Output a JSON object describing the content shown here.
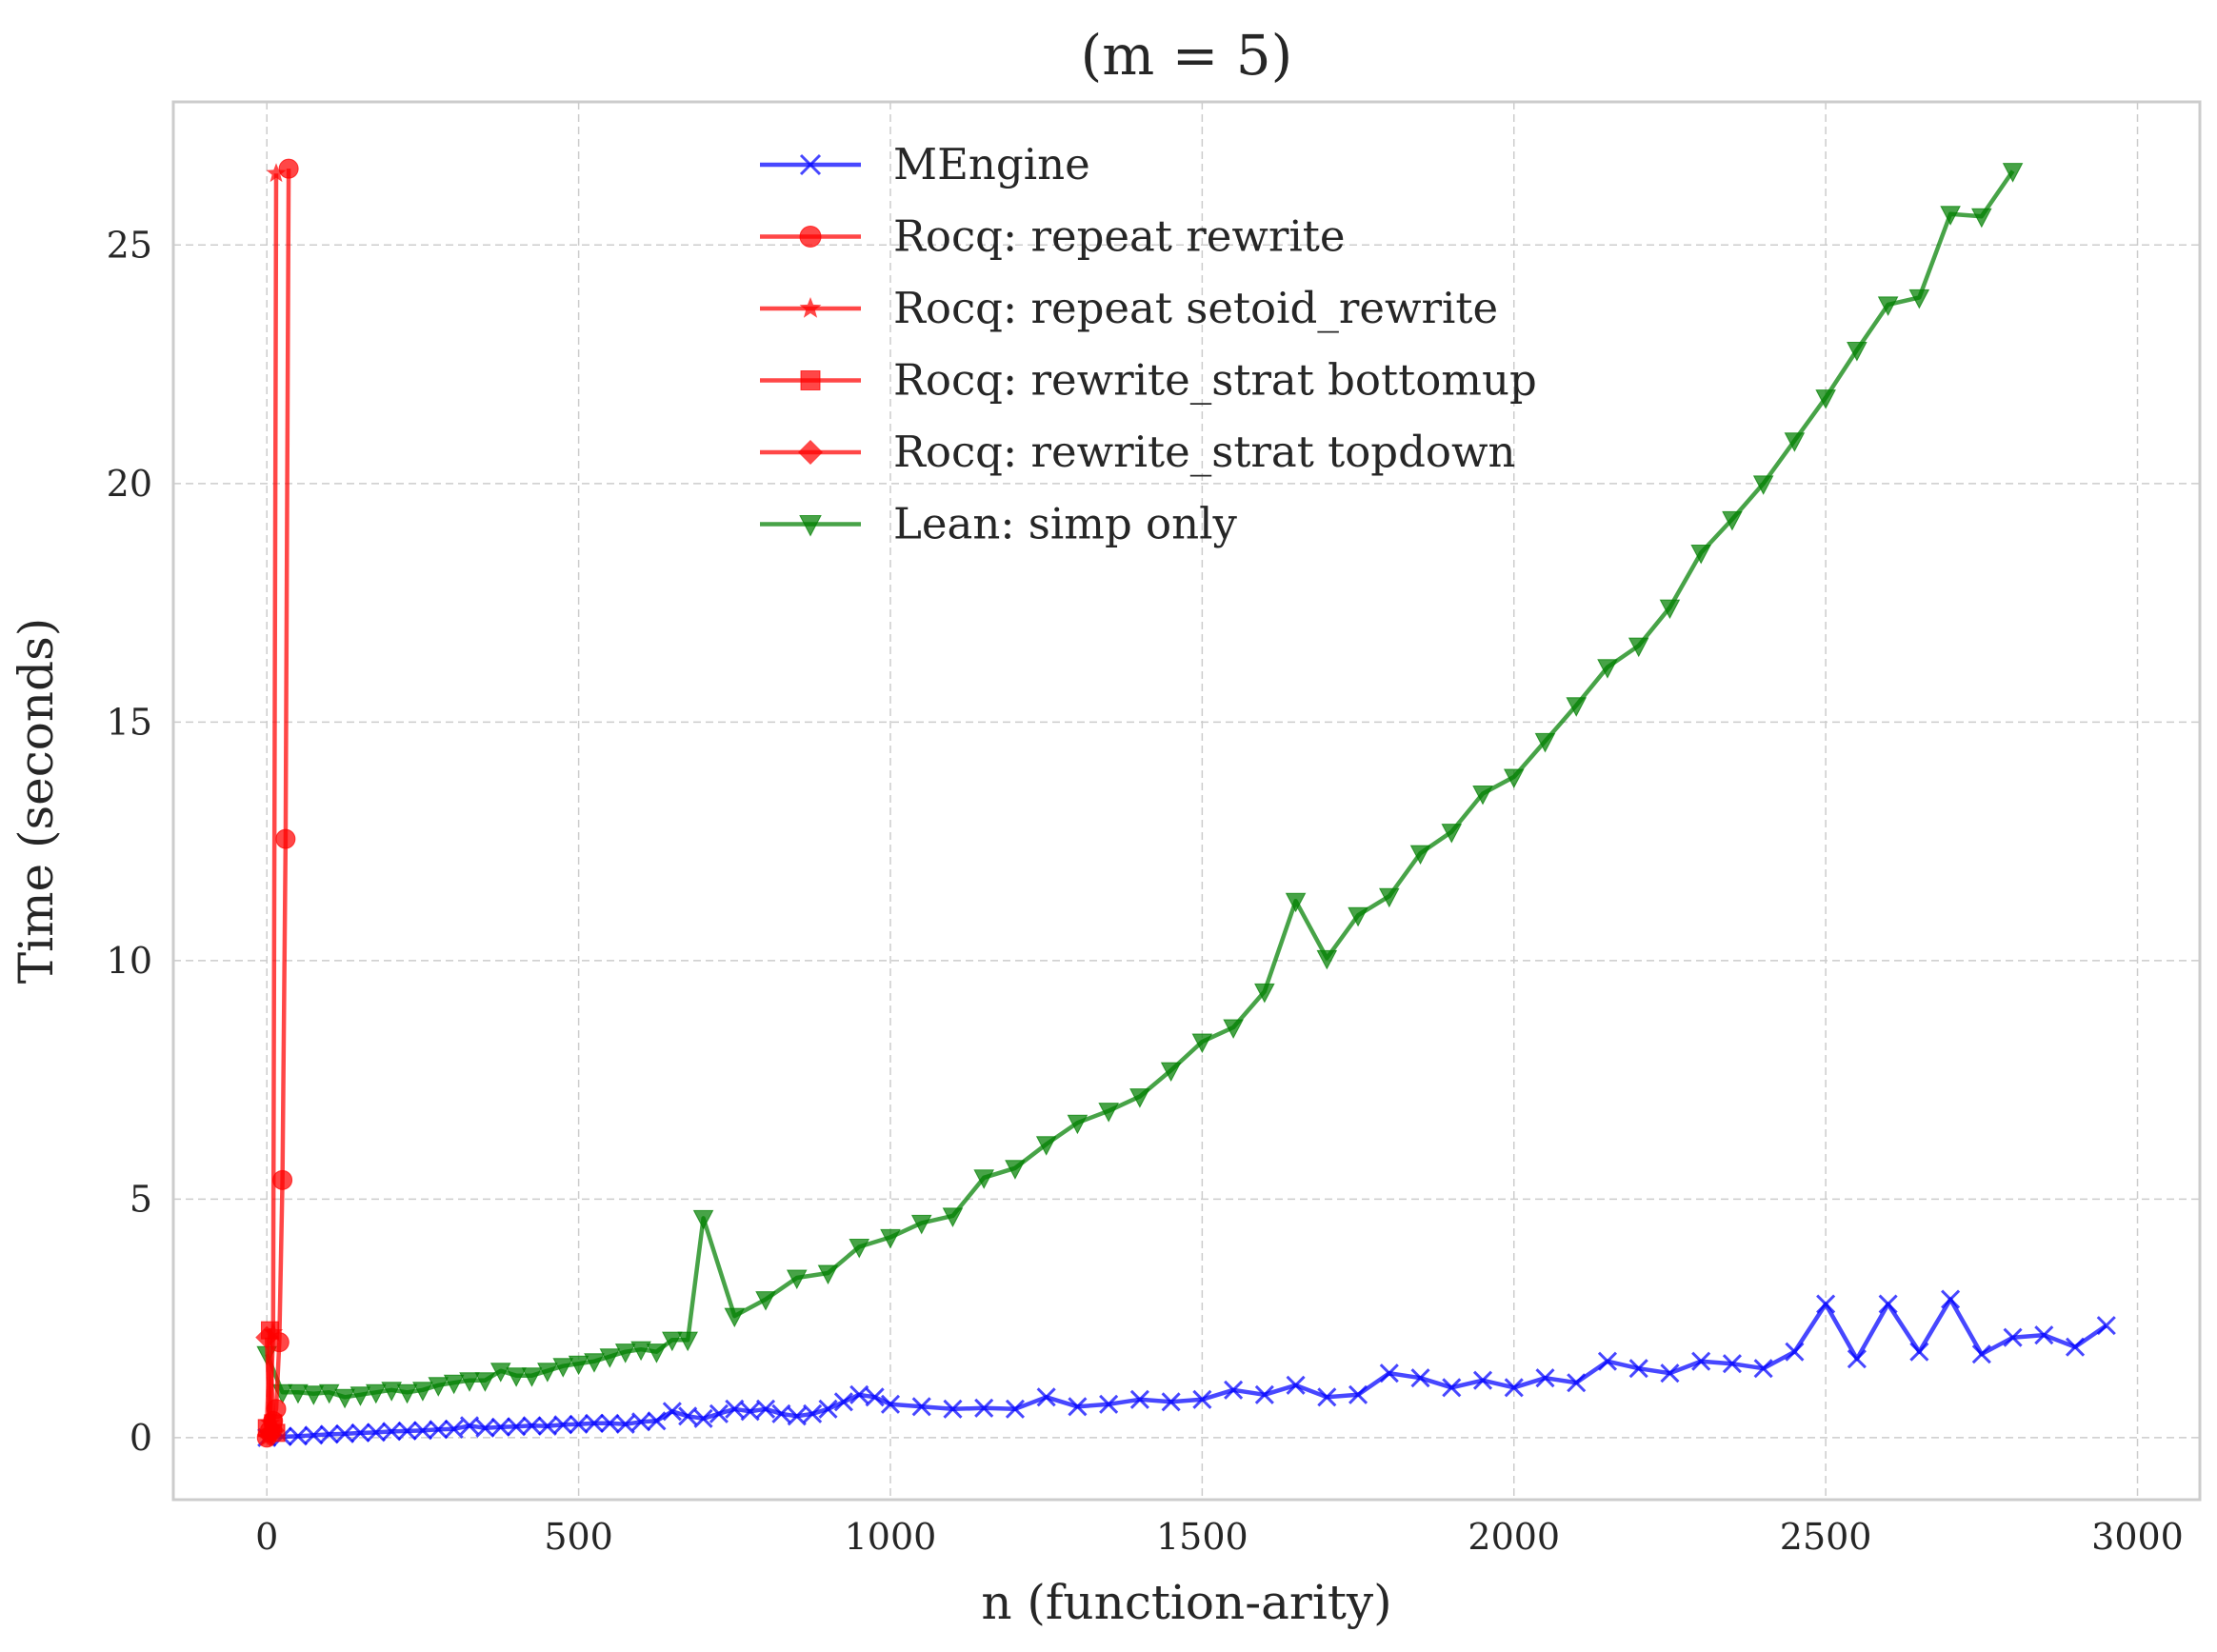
{
  "chart_data": {
    "type": "line",
    "title": "(m = 5)",
    "xlabel": "n (function-arity)",
    "ylabel": "Time (seconds)",
    "xlim": [
      -150,
      3100
    ],
    "ylim": [
      -1.3,
      28.0
    ],
    "xticks": [
      0,
      500,
      1000,
      1500,
      2000,
      2500,
      3000
    ],
    "yticks": [
      0,
      5,
      10,
      15,
      20,
      25
    ],
    "grid": true,
    "legend_position": "top-center",
    "series": [
      {
        "name": "MEngine",
        "color": "#0000ff",
        "marker": "x",
        "x": [
          0,
          25,
          50,
          75,
          100,
          125,
          150,
          175,
          200,
          225,
          250,
          275,
          300,
          325,
          350,
          375,
          400,
          425,
          450,
          475,
          500,
          525,
          550,
          575,
          600,
          625,
          650,
          675,
          700,
          725,
          750,
          775,
          800,
          825,
          850,
          875,
          900,
          925,
          950,
          975,
          1000,
          1050,
          1100,
          1150,
          1200,
          1250,
          1300,
          1350,
          1400,
          1450,
          1500,
          1550,
          1600,
          1650,
          1700,
          1750,
          1800,
          1850,
          1900,
          1950,
          2000,
          2050,
          2100,
          2150,
          2200,
          2250,
          2300,
          2350,
          2400,
          2450,
          2500,
          2550,
          2600,
          2650,
          2700,
          2750,
          2800,
          2850,
          2900,
          2950
        ],
        "y": [
          0.0,
          0.02,
          0.03,
          0.05,
          0.07,
          0.08,
          0.1,
          0.11,
          0.13,
          0.14,
          0.15,
          0.17,
          0.18,
          0.25,
          0.2,
          0.22,
          0.23,
          0.25,
          0.24,
          0.27,
          0.28,
          0.3,
          0.3,
          0.28,
          0.33,
          0.35,
          0.55,
          0.45,
          0.4,
          0.5,
          0.6,
          0.55,
          0.6,
          0.5,
          0.45,
          0.5,
          0.6,
          0.75,
          0.9,
          0.85,
          0.7,
          0.65,
          0.6,
          0.62,
          0.6,
          0.85,
          0.65,
          0.7,
          0.8,
          0.75,
          0.8,
          1.0,
          0.9,
          1.1,
          0.85,
          0.9,
          1.35,
          1.25,
          1.05,
          1.2,
          1.05,
          1.25,
          1.15,
          1.6,
          1.45,
          1.35,
          1.6,
          1.55,
          1.45,
          1.8,
          2.8,
          1.65,
          2.8,
          1.8,
          2.9,
          1.75,
          2.1,
          2.15,
          1.9,
          2.35
        ]
      },
      {
        "name": "Rocq: repeat rewrite",
        "color": "#ff0000",
        "marker": "o",
        "x": [
          0,
          5,
          10,
          15,
          20,
          25,
          30,
          35
        ],
        "y": [
          0.0,
          0.15,
          0.35,
          0.6,
          2.0,
          5.4,
          12.55,
          26.6
        ]
      },
      {
        "name": "Rocq: repeat setoid_rewrite",
        "color": "#ff0000",
        "marker": "*",
        "x": [
          0,
          5,
          10,
          15
        ],
        "y": [
          0.0,
          0.3,
          2.2,
          26.5
        ]
      },
      {
        "name": "Rocq: rewrite_strat bottomup",
        "color": "#ff0000",
        "marker": "s",
        "x": [
          0,
          5,
          10,
          15
        ],
        "y": [
          0.2,
          2.25,
          0.3,
          0.1
        ]
      },
      {
        "name": "Rocq: rewrite_strat topdown",
        "color": "#ff0000",
        "marker": "D",
        "x": [
          0,
          5,
          10
        ],
        "y": [
          2.1,
          0.05,
          0.15
        ]
      },
      {
        "name": "Lean: simp only",
        "color": "#008000",
        "marker": "v",
        "x": [
          0,
          25,
          50,
          75,
          100,
          125,
          150,
          175,
          200,
          225,
          250,
          275,
          300,
          325,
          350,
          375,
          400,
          425,
          450,
          475,
          500,
          525,
          550,
          575,
          600,
          625,
          650,
          675,
          700,
          750,
          800,
          850,
          900,
          950,
          1000,
          1050,
          1100,
          1150,
          1200,
          1250,
          1300,
          1350,
          1400,
          1450,
          1500,
          1550,
          1600,
          1650,
          1700,
          1750,
          1800,
          1850,
          1900,
          1950,
          2000,
          2050,
          2100,
          2150,
          2200,
          2250,
          2300,
          2350,
          2400,
          2450,
          2500,
          2550,
          2600,
          2650,
          2700,
          2750,
          2800
        ],
        "y": [
          1.75,
          0.95,
          0.95,
          0.92,
          0.95,
          0.85,
          0.9,
          0.95,
          1.0,
          0.95,
          1.0,
          1.1,
          1.15,
          1.2,
          1.2,
          1.4,
          1.3,
          1.3,
          1.4,
          1.5,
          1.55,
          1.6,
          1.7,
          1.8,
          1.85,
          1.8,
          2.05,
          2.05,
          4.6,
          2.55,
          2.9,
          3.35,
          3.45,
          4.0,
          4.2,
          4.5,
          4.65,
          5.45,
          5.65,
          6.15,
          6.6,
          6.85,
          7.15,
          7.7,
          8.3,
          8.6,
          9.35,
          11.25,
          10.05,
          10.95,
          11.35,
          12.25,
          12.7,
          13.5,
          13.85,
          14.6,
          15.35,
          16.15,
          16.6,
          17.4,
          18.55,
          19.25,
          20.0,
          20.9,
          21.8,
          22.8,
          23.75,
          23.9,
          25.65,
          25.6,
          26.55
        ]
      }
    ]
  }
}
